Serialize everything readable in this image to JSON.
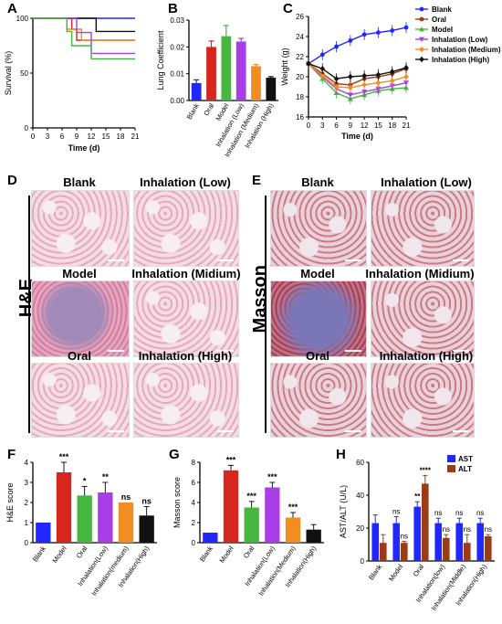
{
  "panel_labels": {
    "A": "A",
    "B": "B",
    "C": "C",
    "D": "D",
    "E": "E",
    "F": "F",
    "G": "G",
    "H": "H"
  },
  "micro_titles": {
    "he": [
      "Blank",
      "Inhalation (Low)",
      "Model",
      "Inhalation (Midium)",
      "Oral",
      "Inhalation (High)"
    ],
    "masson": [
      "Blank",
      "Inhalation (Low)",
      "Model",
      "Inhalation (Midium)",
      "Oral",
      "Inhalation (High)"
    ]
  },
  "stain_labels": {
    "he": "H&E",
    "masson": "Masson"
  },
  "colors": {
    "blue": "#2027ff",
    "red": "#d7261e",
    "green": "#46b641",
    "purple": "#a93ee7",
    "orange": "#f28d22",
    "black": "#111111",
    "brown": "#9c3b16"
  },
  "chart_data": [
    {
      "panel": "A",
      "type": "line",
      "xlabel": "Time (d)",
      "ylabel": "Survival (%)",
      "ylim": [
        0,
        100
      ],
      "xlim": [
        0,
        21
      ],
      "xticks": [
        0,
        3,
        6,
        9,
        12,
        15,
        18,
        21
      ],
      "yticks": [
        0,
        50,
        100
      ],
      "series": [
        {
          "color": "#2027ff",
          "points": [
            [
              0,
              100
            ],
            [
              21,
              100
            ]
          ]
        },
        {
          "color": "#d7261e",
          "points": [
            [
              0,
              100
            ],
            [
              8,
              100
            ],
            [
              8,
              90
            ],
            [
              9,
              90
            ],
            [
              9,
              80
            ],
            [
              21,
              80
            ]
          ]
        },
        {
          "color": "#111111",
          "points": [
            [
              0,
              100
            ],
            [
              13,
              100
            ],
            [
              13,
              88
            ],
            [
              21,
              88
            ]
          ]
        },
        {
          "color": "#f28d22",
          "points": [
            [
              0,
              100
            ],
            [
              7,
              100
            ],
            [
              7,
              90
            ],
            [
              10,
              90
            ],
            [
              10,
              80
            ],
            [
              21,
              80
            ]
          ]
        },
        {
          "color": "#a93ee7",
          "points": [
            [
              0,
              100
            ],
            [
              9,
              100
            ],
            [
              9,
              87
            ],
            [
              12,
              87
            ],
            [
              12,
              68
            ],
            [
              21,
              68
            ]
          ]
        },
        {
          "color": "#46b641",
          "points": [
            [
              0,
              100
            ],
            [
              7,
              100
            ],
            [
              7,
              88
            ],
            [
              8,
              88
            ],
            [
              8,
              75
            ],
            [
              12,
              75
            ],
            [
              12,
              63
            ],
            [
              21,
              63
            ]
          ]
        }
      ]
    },
    {
      "panel": "B",
      "type": "bar",
      "ylabel": "Lung Coefficient",
      "ylim": [
        0,
        0.03
      ],
      "yticks": [
        "0.00",
        "0.01",
        "0.02",
        "0.03"
      ],
      "categories": [
        "Blank",
        "Oral",
        "Model",
        "Inhalation (Low)",
        "Inhalation (Medium)",
        "Inhalation (High)"
      ],
      "values": [
        0.0065,
        0.02,
        0.024,
        0.022,
        0.0128,
        0.0085
      ],
      "errors": [
        0.0012,
        0.0022,
        0.004,
        0.0012,
        0.0006,
        0.0004
      ],
      "colors": [
        "#2027ff",
        "#d7261e",
        "#46b641",
        "#a93ee7",
        "#f28d22",
        "#111111"
      ]
    },
    {
      "panel": "C",
      "type": "line",
      "xlabel": "Time (d)",
      "ylabel": "Weight (g)",
      "xlim": [
        0,
        21
      ],
      "ylim": [
        16,
        26
      ],
      "xticks": [
        0,
        3,
        6,
        9,
        12,
        15,
        18,
        21
      ],
      "yticks": [
        16,
        18,
        20,
        22,
        24,
        26
      ],
      "x": [
        0,
        3,
        6,
        9,
        12,
        15,
        18,
        21
      ],
      "series": [
        {
          "name": "Blank",
          "color": "#2027ff",
          "marker": "circle",
          "values": [
            21.3,
            22.2,
            23.0,
            23.6,
            24.2,
            24.4,
            24.6,
            24.9
          ]
        },
        {
          "name": "Oral",
          "color": "#9c3b16",
          "marker": "circle",
          "values": [
            21.3,
            20.3,
            19.3,
            19.2,
            19.8,
            20.0,
            20.3,
            20.8
          ]
        },
        {
          "name": "Model",
          "color": "#46b641",
          "marker": "triangle",
          "values": [
            21.3,
            19.8,
            18.4,
            17.8,
            18.2,
            18.6,
            18.8,
            18.9
          ]
        },
        {
          "name": "Inhalation (Low)",
          "color": "#a93ee7",
          "marker": "triangle-down",
          "values": [
            21.3,
            20.0,
            18.8,
            18.2,
            18.5,
            18.8,
            19.1,
            19.4
          ]
        },
        {
          "name": "Inhalation (Medium)",
          "color": "#f28d22",
          "marker": "diamond",
          "values": [
            21.3,
            20.1,
            19.0,
            18.9,
            19.2,
            19.4,
            19.6,
            20.0
          ]
        },
        {
          "name": "Inhalation (High)",
          "color": "#111111",
          "marker": "diamond",
          "values": [
            21.3,
            20.8,
            19.8,
            20.0,
            20.1,
            20.2,
            20.5,
            20.9
          ]
        }
      ]
    },
    {
      "panel": "F",
      "type": "bar",
      "ylabel": "H&E score",
      "ylim": [
        0,
        4
      ],
      "yticks": [
        0,
        1,
        2,
        3,
        4
      ],
      "categories": [
        "Blank",
        "Model",
        "Oral",
        "Inhalation(Low)",
        "Inhalation(medium)",
        "Inhalation(High)"
      ],
      "values": [
        1.0,
        3.5,
        2.35,
        2.5,
        2.0,
        1.35
      ],
      "errors": [
        0,
        0.5,
        0.45,
        0.5,
        0,
        0.45
      ],
      "annotations": [
        "",
        "***",
        "*",
        "**",
        "ns",
        "ns"
      ],
      "colors": [
        "#2027ff",
        "#d7261e",
        "#46b641",
        "#a93ee7",
        "#f28d22",
        "#111111"
      ]
    },
    {
      "panel": "G",
      "type": "bar",
      "ylabel": "Masson score",
      "ylim": [
        0,
        8
      ],
      "yticks": [
        0,
        2,
        4,
        6,
        8
      ],
      "categories": [
        "Blank",
        "Model",
        "Oral",
        "Inhalation(Low)",
        "Inhalation(Medium)",
        "Inhalation(High)"
      ],
      "values": [
        1.0,
        7.2,
        3.5,
        5.5,
        2.5,
        1.3
      ],
      "errors": [
        0,
        0.5,
        0.6,
        0.5,
        0.5,
        0.5
      ],
      "annotations": [
        "",
        "***",
        "***",
        "***",
        "***",
        ""
      ],
      "colors": [
        "#2027ff",
        "#d7261e",
        "#46b641",
        "#a93ee7",
        "#f28d22",
        "#111111"
      ]
    },
    {
      "panel": "H",
      "type": "bar",
      "ylabel": "AST/ALT (U/L)",
      "ylim": [
        0,
        60
      ],
      "yticks": [
        0,
        20,
        40,
        60
      ],
      "categories": [
        "Blank",
        "Model",
        "Oral",
        "Inhalation(low)",
        "Inhalation(Middle)",
        "Inhalation(High)"
      ],
      "series": [
        {
          "name": "AST",
          "color": "#2027ff",
          "values": [
            23,
            23,
            33,
            23,
            23,
            23
          ],
          "errors": [
            5,
            4,
            3,
            3,
            3,
            3
          ],
          "annotations": [
            "",
            "ns",
            "**",
            "ns",
            "ns",
            "ns"
          ]
        },
        {
          "name": "ALT",
          "color": "#9c3b16",
          "values": [
            11,
            11,
            47,
            14,
            11,
            15
          ],
          "errors": [
            5,
            1,
            5,
            2,
            5,
            1
          ],
          "annotations": [
            "",
            "ns",
            "****",
            "ns",
            "ns",
            "ns"
          ]
        }
      ]
    }
  ]
}
